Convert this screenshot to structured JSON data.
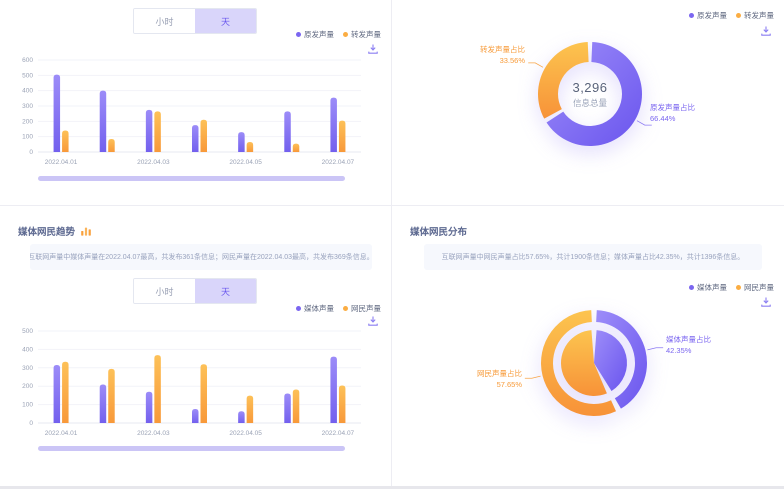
{
  "colors": {
    "purple": "#7B66F0",
    "purple_light": "#9C8CF8",
    "orange": "#F8993A",
    "orange_light": "#FDC158",
    "datazoom": "#CBC5F6",
    "insight_bg": "#F6F8FD",
    "title_text": "#5C6890"
  },
  "top_left": {
    "toggle": {
      "options": [
        "小时",
        "天"
      ],
      "selected": "天"
    },
    "legend": [
      {
        "label": "原发声量",
        "color": "#7B66F0"
      },
      {
        "label": "转发声量",
        "color": "#FBAD43"
      }
    ],
    "download_icon": "download-icon"
  },
  "top_right": {
    "legend": [
      {
        "label": "原发声量",
        "color": "#7B66F0"
      },
      {
        "label": "转发声量",
        "color": "#FBAD43"
      }
    ],
    "center": {
      "value": "3,296",
      "label": "信息总量"
    },
    "labels": {
      "purple": {
        "line1": "原发声量占比",
        "line2": "66.44%"
      },
      "orange": {
        "line1": "转发声量占比",
        "line2": "33.56%"
      }
    }
  },
  "bottom_left": {
    "title": "媒体网民趋势",
    "insight": "互联网声量中媒体声量在2022.04.07最高，共发布361条信息；网民声量在2022.04.03最高，共发布369条信息。",
    "toggle": {
      "options": [
        "小时",
        "天"
      ],
      "selected": "天"
    },
    "legend": [
      {
        "label": "媒体声量",
        "color": "#7B66F0"
      },
      {
        "label": "网民声量",
        "color": "#FBAD43"
      }
    ]
  },
  "bottom_right": {
    "title": "媒体网民分布",
    "insight": "互联网声量中网民声量占比57.65%，共计1900条信息；媒体声量占比42.35%，共计1396条信息。",
    "legend": [
      {
        "label": "媒体声量",
        "color": "#7B66F0"
      },
      {
        "label": "网民声量",
        "color": "#FBAD43"
      }
    ],
    "labels": {
      "purple": {
        "line1": "媒体声量占比",
        "line2": "42.35%"
      },
      "orange": {
        "line1": "网民声量占比",
        "line2": "57.65%"
      }
    }
  },
  "chart_data": [
    {
      "panel": "top-left",
      "type": "bar",
      "categories": [
        "2022.04.01",
        "2022.04.02",
        "2022.04.03",
        "2022.04.04",
        "2022.04.05",
        "2022.04.06",
        "2022.04.07"
      ],
      "x_label_every": 2,
      "series": [
        {
          "name": "原发声量",
          "color": "purple",
          "values": [
            505,
            400,
            275,
            175,
            130,
            265,
            355
          ]
        },
        {
          "name": "转发声量",
          "color": "orange",
          "values": [
            140,
            85,
            265,
            210,
            65,
            55,
            205
          ]
        }
      ],
      "ylim": [
        0,
        600
      ],
      "ytick_step": 100,
      "grid": true,
      "legend_position": "top-right",
      "datazoom": true
    },
    {
      "panel": "top-right",
      "type": "pie",
      "style": "donut",
      "center_value": "3,296",
      "center_label": "信息总量",
      "slices": [
        {
          "name": "原发声量占比",
          "pct": 66.44,
          "color": "purple"
        },
        {
          "name": "转发声量占比",
          "pct": 33.56,
          "color": "orange"
        }
      ],
      "legend_position": "top-right"
    },
    {
      "panel": "bottom-left",
      "type": "bar",
      "categories": [
        "2022.04.01",
        "2022.04.02",
        "2022.04.03",
        "2022.04.04",
        "2022.04.05",
        "2022.04.06",
        "2022.04.07"
      ],
      "x_label_every": 2,
      "series": [
        {
          "name": "媒体声量",
          "color": "purple",
          "values": [
            315,
            209,
            170,
            76,
            64,
            160,
            361
          ]
        },
        {
          "name": "网民声量",
          "color": "orange",
          "values": [
            333,
            294,
            369,
            319,
            149,
            182,
            204
          ]
        }
      ],
      "ylim": [
        0,
        500
      ],
      "ytick_step": 100,
      "grid": true,
      "legend_position": "right",
      "datazoom": true
    },
    {
      "panel": "bottom-right",
      "type": "pie",
      "style": "nested",
      "slices": [
        {
          "name": "媒体声量占比",
          "pct": 42.35,
          "color": "purple"
        },
        {
          "name": "网民声量占比",
          "pct": 57.65,
          "color": "orange"
        }
      ],
      "legend_position": "right"
    }
  ]
}
